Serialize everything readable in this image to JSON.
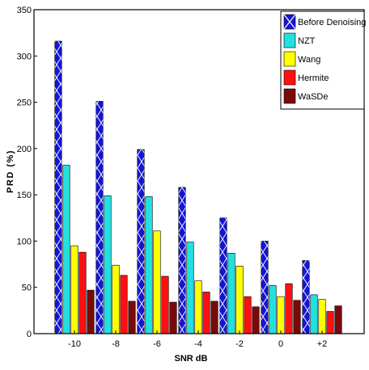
{
  "chart_data": {
    "type": "bar",
    "title": "",
    "xlabel": "SNR dB",
    "ylabel": "PRD (%)",
    "categories": [
      "-10",
      "-8",
      "-6",
      "-4",
      "-2",
      "0",
      "+2"
    ],
    "ylim": [
      0,
      350
    ],
    "yticks": [
      0,
      50,
      100,
      150,
      200,
      250,
      300,
      350
    ],
    "grid": false,
    "legend_position": "top-right",
    "series": [
      {
        "name": "Before Denoising",
        "color": "#1515d6",
        "values": [
          316,
          251,
          199,
          158,
          125,
          100,
          79
        ]
      },
      {
        "name": "NZT",
        "color": "#22e0e0",
        "values": [
          182,
          149,
          148,
          99,
          87,
          52,
          42
        ]
      },
      {
        "name": "Wang",
        "color": "#ffff00",
        "values": [
          95,
          74,
          111,
          57,
          73,
          40,
          37
        ]
      },
      {
        "name": "Hermite",
        "color": "#ff1010",
        "values": [
          88,
          63,
          62,
          45,
          40,
          54,
          24
        ]
      },
      {
        "name": "WaSDe",
        "color": "#7a0a0a",
        "values": [
          47,
          35,
          34,
          35,
          29,
          36,
          30
        ]
      }
    ]
  }
}
